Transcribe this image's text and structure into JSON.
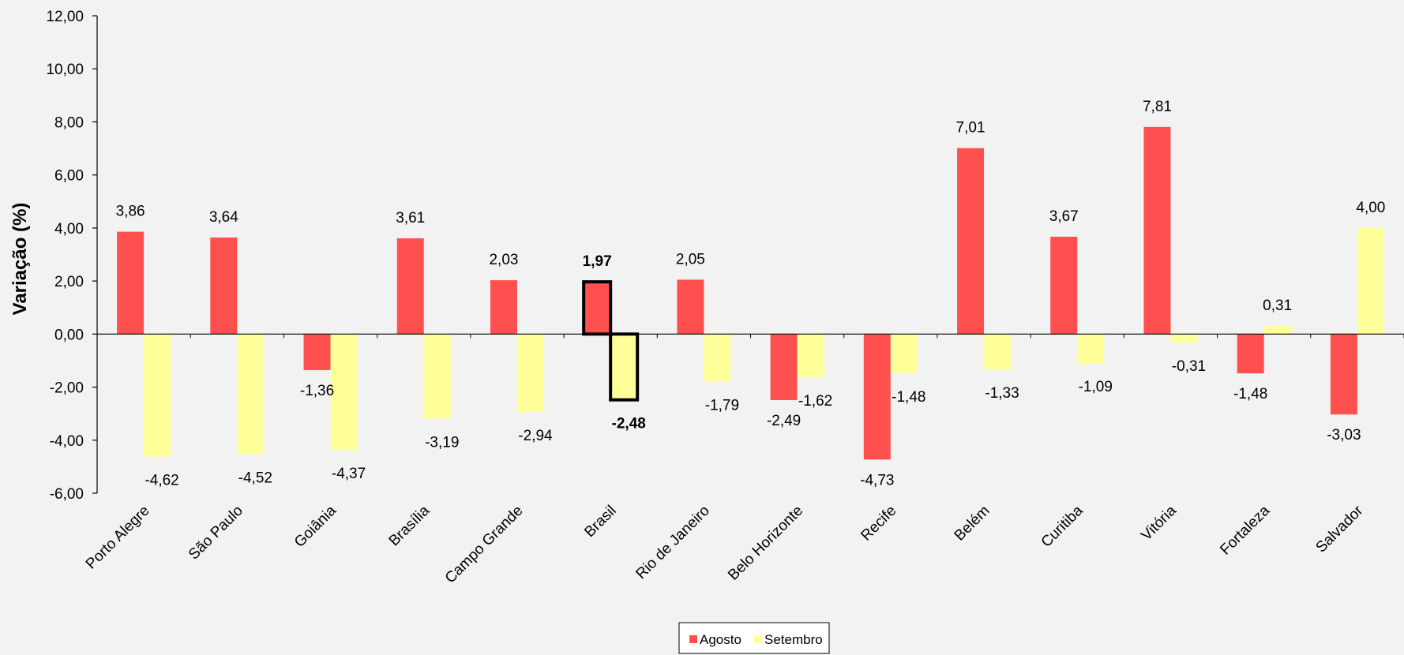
{
  "chart_data": {
    "type": "bar",
    "title": "",
    "xlabel": "",
    "ylabel": "Variação (%)",
    "ylim": [
      -6,
      12
    ],
    "ytick_step": 2,
    "ytick_labels": [
      "-6,00",
      "-4,00",
      "-2,00",
      "0,00",
      "2,00",
      "4,00",
      "6,00",
      "8,00",
      "10,00",
      "12,00"
    ],
    "grid": false,
    "legend_position": "bottom-center",
    "highlight_category": "Brasil",
    "categories": [
      "Porto Alegre",
      "São Paulo",
      "Goiânia",
      "Brasília",
      "Campo Grande",
      "Brasil",
      "Rio de Janeiro",
      "Belo Horizonte",
      "Recife",
      "Belém",
      "Curitiba",
      "Vitória",
      "Fortaleza",
      "Salvador"
    ],
    "series": [
      {
        "name": "Agosto",
        "color": "#ff5050",
        "values": [
          3.86,
          3.64,
          -1.36,
          3.61,
          2.03,
          1.97,
          2.05,
          -2.49,
          -4.73,
          7.01,
          3.67,
          7.81,
          -1.48,
          -3.03
        ],
        "labels": [
          "3,86",
          "3,64",
          "-1,36",
          "3,61",
          "2,03",
          "1,97",
          "2,05",
          "-2,49",
          "-4,73",
          "7,01",
          "3,67",
          "7,81",
          "-1,48",
          "-3,03"
        ]
      },
      {
        "name": "Setembro",
        "color": "#ffff99",
        "values": [
          -4.62,
          -4.52,
          -4.37,
          -3.19,
          -2.94,
          -2.48,
          -1.79,
          -1.62,
          -1.48,
          -1.33,
          -1.09,
          -0.31,
          0.31,
          4.0
        ],
        "labels": [
          "-4,62",
          "-4,52",
          "-4,37",
          "-3,19",
          "-2,94",
          "-2,48",
          "-1,79",
          "-1,62",
          "-1,48",
          "-1,33",
          "-1,09",
          "-0,31",
          "0,31",
          "4,00"
        ]
      }
    ]
  }
}
